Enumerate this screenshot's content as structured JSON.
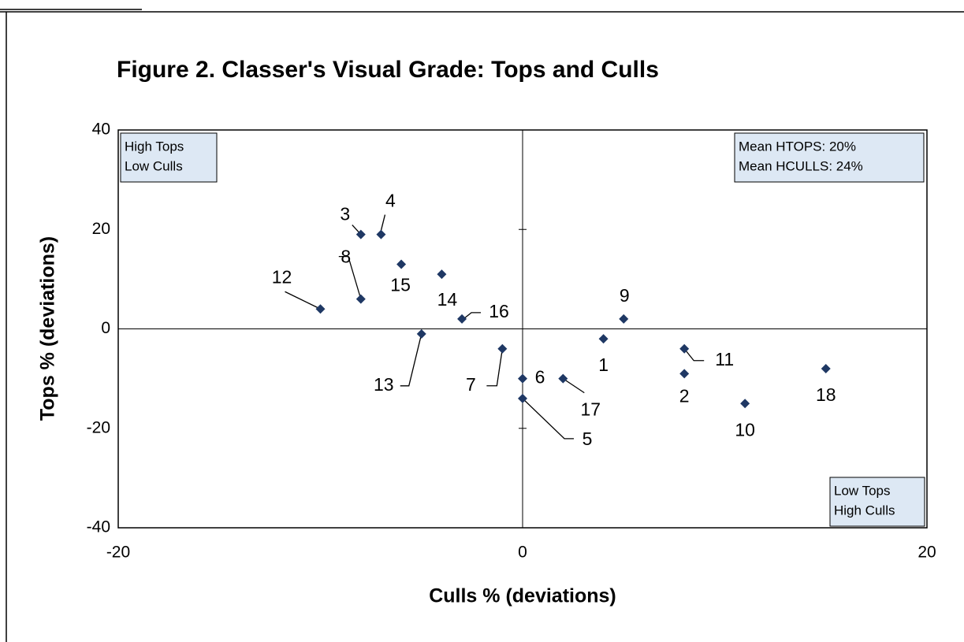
{
  "chart_data": {
    "type": "scatter",
    "title": "Figure 2.  Classer's Visual Grade: Tops and Culls",
    "x_label": "Culls % (deviations)",
    "y_label": "Tops % (deviations)",
    "xlim": [
      -20,
      20
    ],
    "xticks": [
      -20,
      0,
      20
    ],
    "ylim": [
      -40,
      40
    ],
    "yticks": [
      -40,
      -20,
      0,
      20,
      40
    ],
    "color": "#1f3864",
    "series": [
      {
        "name": null,
        "labels": [
          "1",
          "2",
          "3",
          "4",
          "5",
          "6",
          "7",
          "8",
          "9",
          "10",
          "11",
          "12",
          "13",
          "14",
          "15",
          "16",
          "17",
          "18"
        ],
        "x": [
          4,
          8,
          -8,
          -7,
          0,
          0,
          -1,
          -8,
          5,
          11,
          8,
          -10,
          -5,
          -4,
          -6,
          -3,
          2,
          15
        ],
        "values": [
          -2,
          -9,
          19,
          19,
          -14,
          -10,
          -4,
          6,
          2,
          -15,
          -4,
          4,
          -1,
          11,
          13,
          2,
          -10,
          -8
        ]
      }
    ],
    "annotations": [
      [
        "High Tops",
        "Low Culls"
      ],
      [
        "Mean HTOPS: 20%",
        "Mean HCULLS: 24%"
      ],
      [
        "Low Tops",
        "High Culls"
      ]
    ]
  }
}
